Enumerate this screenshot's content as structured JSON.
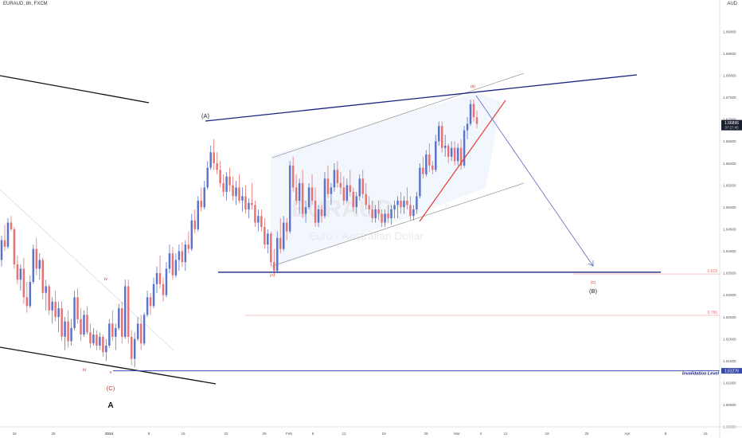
{
  "chart_data": {
    "type": "candlestick",
    "symbol": "EURAUD, 8h, FXCM",
    "currency": "AUD",
    "watermark": {
      "ticker": "EURAUD",
      "name": "Euro · Australian Dollar"
    },
    "price_label": {
      "value": "1.66896",
      "countdown": "07:27:45"
    },
    "ylim": [
      1.6,
      1.695
    ],
    "y_ticks": [
      "1.69000",
      "1.68500",
      "1.68000",
      "1.67500",
      "1.67000",
      "1.66500",
      "1.66000",
      "1.65500",
      "1.65000",
      "1.64500",
      "1.64000",
      "1.63500",
      "1.63000",
      "1.62500",
      "1.62000",
      "1.61500",
      "1.61000",
      "1.60500",
      "1.60000"
    ],
    "x_ticks": [
      "18",
      "25",
      "2024",
      "8",
      "15",
      "22",
      "29",
      "Feb",
      "6",
      "12",
      "19",
      "26",
      "Mar",
      "4",
      "11",
      "18",
      "25",
      "Apr",
      "8",
      "15"
    ],
    "wave_labels": [
      {
        "text": "iii",
        "color": "#d32f2f"
      },
      {
        "text": "iv",
        "color": "#d32f2f"
      },
      {
        "text": "v",
        "color": "#d32f2f"
      },
      {
        "text": "(C)",
        "color": "#d32f2f"
      },
      {
        "text": "A",
        "color": "#111111"
      },
      {
        "text": "(A)",
        "color": "#222222"
      },
      {
        "text": "(A)",
        "color": "#d32f2f"
      },
      {
        "text": "(B)",
        "color": "#d32f2f"
      },
      {
        "text": "(C)",
        "color": "#d32f2f"
      },
      {
        "text": "(B)",
        "color": "#222222"
      }
    ],
    "levels": [
      {
        "label": "0.618",
        "price": 1.6348,
        "color": "#ef9a9a"
      },
      {
        "label": "0.786",
        "price": 1.6254,
        "color": "#ef9a9a"
      },
      {
        "label": "Invalidation Level",
        "value": "1.61276",
        "price": 1.61276,
        "color": "#1a237e"
      }
    ],
    "support_level": 1.6352,
    "colors": {
      "up": "#5b73c8",
      "down": "#e57373",
      "channel": "#1a237e",
      "trendline": "#e53935",
      "projection": "#5c6bc0",
      "axis_text": "#555555"
    },
    "candles_ohlc": [
      [
        1.638,
        1.6435,
        1.6365,
        1.6425
      ],
      [
        1.6425,
        1.646,
        1.64,
        1.641
      ],
      [
        1.641,
        1.6475,
        1.6405,
        1.6465
      ],
      [
        1.6465,
        1.648,
        1.6445,
        1.645
      ],
      [
        1.645,
        1.6455,
        1.636,
        1.637
      ],
      [
        1.637,
        1.639,
        1.6325,
        1.6335
      ],
      [
        1.6335,
        1.637,
        1.631,
        1.636
      ],
      [
        1.636,
        1.6385,
        1.628,
        1.6295
      ],
      [
        1.6295,
        1.633,
        1.626,
        1.6275
      ],
      [
        1.6275,
        1.6345,
        1.627,
        1.633
      ],
      [
        1.633,
        1.6415,
        1.6325,
        1.6405
      ],
      [
        1.6405,
        1.643,
        1.6345,
        1.636
      ],
      [
        1.636,
        1.6395,
        1.6335,
        1.638
      ],
      [
        1.638,
        1.6385,
        1.629,
        1.6305
      ],
      [
        1.6305,
        1.6335,
        1.6265,
        1.632
      ],
      [
        1.632,
        1.6325,
        1.6255,
        1.6265
      ],
      [
        1.6265,
        1.6295,
        1.6235,
        1.6285
      ],
      [
        1.6285,
        1.631,
        1.624,
        1.625
      ],
      [
        1.625,
        1.6285,
        1.6215,
        1.627
      ],
      [
        1.627,
        1.6285,
        1.6195,
        1.6205
      ],
      [
        1.6205,
        1.625,
        1.6175,
        1.624
      ],
      [
        1.624,
        1.6265,
        1.618,
        1.6195
      ],
      [
        1.6195,
        1.6245,
        1.6185,
        1.6225
      ],
      [
        1.6225,
        1.631,
        1.622,
        1.6295
      ],
      [
        1.6295,
        1.6315,
        1.6235,
        1.6245
      ],
      [
        1.6245,
        1.627,
        1.6195,
        1.621
      ],
      [
        1.621,
        1.6265,
        1.6205,
        1.6255
      ],
      [
        1.6255,
        1.6275,
        1.621,
        1.6215
      ],
      [
        1.6215,
        1.6235,
        1.618,
        1.619
      ],
      [
        1.619,
        1.6225,
        1.6185,
        1.621
      ],
      [
        1.621,
        1.622,
        1.6175,
        1.6185
      ],
      [
        1.6185,
        1.6215,
        1.6175,
        1.6205
      ],
      [
        1.6205,
        1.621,
        1.616,
        1.617
      ],
      [
        1.617,
        1.62,
        1.615,
        1.6185
      ],
      [
        1.6185,
        1.6245,
        1.618,
        1.6235
      ],
      [
        1.6235,
        1.6265,
        1.6195,
        1.6205
      ],
      [
        1.6205,
        1.6235,
        1.6175,
        1.6225
      ],
      [
        1.6225,
        1.628,
        1.622,
        1.627
      ],
      [
        1.627,
        1.6285,
        1.619,
        1.6205
      ],
      [
        1.6205,
        1.6335,
        1.62,
        1.632
      ],
      [
        1.632,
        1.6335,
        1.619,
        1.6205
      ],
      [
        1.6205,
        1.622,
        1.614,
        1.6155
      ],
      [
        1.6155,
        1.6215,
        1.6135,
        1.62
      ],
      [
        1.62,
        1.625,
        1.6195,
        1.6235
      ],
      [
        1.6235,
        1.6255,
        1.6175,
        1.619
      ],
      [
        1.619,
        1.626,
        1.6185,
        1.6255
      ],
      [
        1.6255,
        1.631,
        1.625,
        1.6295
      ],
      [
        1.6295,
        1.6305,
        1.6255,
        1.6275
      ],
      [
        1.6275,
        1.634,
        1.627,
        1.6325
      ],
      [
        1.6325,
        1.6365,
        1.6305,
        1.635
      ],
      [
        1.635,
        1.639,
        1.6315,
        1.6325
      ],
      [
        1.6325,
        1.634,
        1.6285,
        1.63
      ],
      [
        1.63,
        1.6375,
        1.6295,
        1.636
      ],
      [
        1.636,
        1.6415,
        1.635,
        1.6395
      ],
      [
        1.6395,
        1.641,
        1.6335,
        1.6345
      ],
      [
        1.6345,
        1.6395,
        1.634,
        1.638
      ],
      [
        1.638,
        1.6415,
        1.6355,
        1.64
      ],
      [
        1.64,
        1.642,
        1.6365,
        1.6375
      ],
      [
        1.6375,
        1.6425,
        1.6355,
        1.6415
      ],
      [
        1.6415,
        1.6445,
        1.6395,
        1.6405
      ],
      [
        1.6405,
        1.6485,
        1.64,
        1.647
      ],
      [
        1.647,
        1.6495,
        1.644,
        1.645
      ],
      [
        1.645,
        1.6525,
        1.6445,
        1.6515
      ],
      [
        1.6515,
        1.6545,
        1.649,
        1.65
      ],
      [
        1.65,
        1.656,
        1.6495,
        1.6545
      ],
      [
        1.6545,
        1.6605,
        1.654,
        1.659
      ],
      [
        1.659,
        1.664,
        1.6585,
        1.6625
      ],
      [
        1.6625,
        1.6655,
        1.6585,
        1.66
      ],
      [
        1.66,
        1.6625,
        1.6575,
        1.6585
      ],
      [
        1.6585,
        1.6605,
        1.6545,
        1.6555
      ],
      [
        1.6555,
        1.6575,
        1.6525,
        1.6535
      ],
      [
        1.6535,
        1.658,
        1.6515,
        1.657
      ],
      [
        1.657,
        1.659,
        1.6535,
        1.655
      ],
      [
        1.655,
        1.657,
        1.6515,
        1.6525
      ],
      [
        1.6525,
        1.656,
        1.6505,
        1.6545
      ],
      [
        1.6545,
        1.6575,
        1.651,
        1.6515
      ],
      [
        1.6515,
        1.6545,
        1.649,
        1.6525
      ],
      [
        1.6525,
        1.655,
        1.6485,
        1.6495
      ],
      [
        1.6495,
        1.652,
        1.6475,
        1.651
      ],
      [
        1.651,
        1.6555,
        1.6495,
        1.6505
      ],
      [
        1.6505,
        1.6515,
        1.6455,
        1.6465
      ],
      [
        1.6465,
        1.6495,
        1.6445,
        1.648
      ],
      [
        1.648,
        1.6495,
        1.6445,
        1.6455
      ],
      [
        1.6455,
        1.6475,
        1.6405,
        1.6415
      ],
      [
        1.6415,
        1.645,
        1.6395,
        1.644
      ],
      [
        1.644,
        1.6445,
        1.6365,
        1.6375
      ],
      [
        1.6375,
        1.6405,
        1.6345,
        1.6355
      ],
      [
        1.6355,
        1.6445,
        1.635,
        1.643
      ],
      [
        1.643,
        1.6475,
        1.6395,
        1.6405
      ],
      [
        1.6405,
        1.648,
        1.64,
        1.6465
      ],
      [
        1.6465,
        1.6475,
        1.6425,
        1.6445
      ],
      [
        1.6445,
        1.6605,
        1.644,
        1.6595
      ],
      [
        1.6595,
        1.6615,
        1.6535,
        1.6545
      ],
      [
        1.6545,
        1.6575,
        1.6505,
        1.6515
      ],
      [
        1.6515,
        1.6565,
        1.6485,
        1.6555
      ],
      [
        1.6555,
        1.6585,
        1.6475,
        1.6485
      ],
      [
        1.6485,
        1.6515,
        1.6465,
        1.65
      ],
      [
        1.65,
        1.6555,
        1.6495,
        1.6545
      ],
      [
        1.6545,
        1.6575,
        1.6505,
        1.6515
      ],
      [
        1.6515,
        1.6545,
        1.6455,
        1.6465
      ],
      [
        1.6465,
        1.6505,
        1.6455,
        1.6495
      ],
      [
        1.6495,
        1.6505,
        1.6465,
        1.648
      ],
      [
        1.648,
        1.658,
        1.6475,
        1.6565
      ],
      [
        1.6565,
        1.6595,
        1.652,
        1.653
      ],
      [
        1.653,
        1.6555,
        1.6505,
        1.6545
      ],
      [
        1.6545,
        1.66,
        1.6535,
        1.6585
      ],
      [
        1.6585,
        1.6605,
        1.6545,
        1.6555
      ],
      [
        1.6555,
        1.658,
        1.653,
        1.6545
      ],
      [
        1.6545,
        1.657,
        1.6505,
        1.6515
      ],
      [
        1.6515,
        1.6565,
        1.651,
        1.655
      ],
      [
        1.655,
        1.6585,
        1.6525,
        1.6535
      ],
      [
        1.6535,
        1.6545,
        1.649,
        1.65
      ],
      [
        1.65,
        1.6535,
        1.6485,
        1.6525
      ],
      [
        1.6525,
        1.6575,
        1.6515,
        1.6565
      ],
      [
        1.6565,
        1.6585,
        1.652,
        1.653
      ],
      [
        1.653,
        1.6555,
        1.6495,
        1.6505
      ],
      [
        1.6505,
        1.6525,
        1.6485,
        1.6495
      ],
      [
        1.6495,
        1.6515,
        1.6465,
        1.6475
      ],
      [
        1.6475,
        1.6505,
        1.6465,
        1.6495
      ],
      [
        1.6495,
        1.6515,
        1.647,
        1.6485
      ],
      [
        1.6485,
        1.6495,
        1.6455,
        1.6465
      ],
      [
        1.6465,
        1.6495,
        1.6455,
        1.6485
      ],
      [
        1.6485,
        1.6505,
        1.6465,
        1.6475
      ],
      [
        1.6475,
        1.6505,
        1.646,
        1.6495
      ],
      [
        1.6495,
        1.6515,
        1.6475,
        1.6505
      ],
      [
        1.6505,
        1.6525,
        1.6475,
        1.6515
      ],
      [
        1.6515,
        1.6535,
        1.6485,
        1.65
      ],
      [
        1.65,
        1.6525,
        1.6485,
        1.6515
      ],
      [
        1.6515,
        1.6545,
        1.6495,
        1.6505
      ],
      [
        1.6505,
        1.6525,
        1.647,
        1.648
      ],
      [
        1.648,
        1.6505,
        1.647,
        1.6495
      ],
      [
        1.6495,
        1.6535,
        1.6485,
        1.6525
      ],
      [
        1.6525,
        1.66,
        1.652,
        1.659
      ],
      [
        1.659,
        1.6615,
        1.6565,
        1.6575
      ],
      [
        1.6575,
        1.663,
        1.657,
        1.662
      ],
      [
        1.662,
        1.6645,
        1.658,
        1.6595
      ],
      [
        1.6595,
        1.6605,
        1.6575,
        1.6585
      ],
      [
        1.6585,
        1.6665,
        1.658,
        1.665
      ],
      [
        1.665,
        1.6695,
        1.664,
        1.6685
      ],
      [
        1.6685,
        1.6695,
        1.6625,
        1.6635
      ],
      [
        1.6635,
        1.6665,
        1.6615,
        1.664
      ],
      [
        1.664,
        1.6645,
        1.66,
        1.6615
      ],
      [
        1.6615,
        1.665,
        1.6605,
        1.6635
      ],
      [
        1.6635,
        1.665,
        1.6595,
        1.6605
      ],
      [
        1.6605,
        1.6645,
        1.6595,
        1.6635
      ],
      [
        1.6635,
        1.6655,
        1.6585,
        1.6595
      ],
      [
        1.6595,
        1.6685,
        1.659,
        1.6675
      ],
      [
        1.6675,
        1.6705,
        1.6655,
        1.669
      ],
      [
        1.669,
        1.6745,
        1.6685,
        1.6735
      ],
      [
        1.6735,
        1.6745,
        1.6695,
        1.6705
      ],
      [
        1.6705,
        1.672,
        1.668,
        1.669
      ]
    ]
  }
}
